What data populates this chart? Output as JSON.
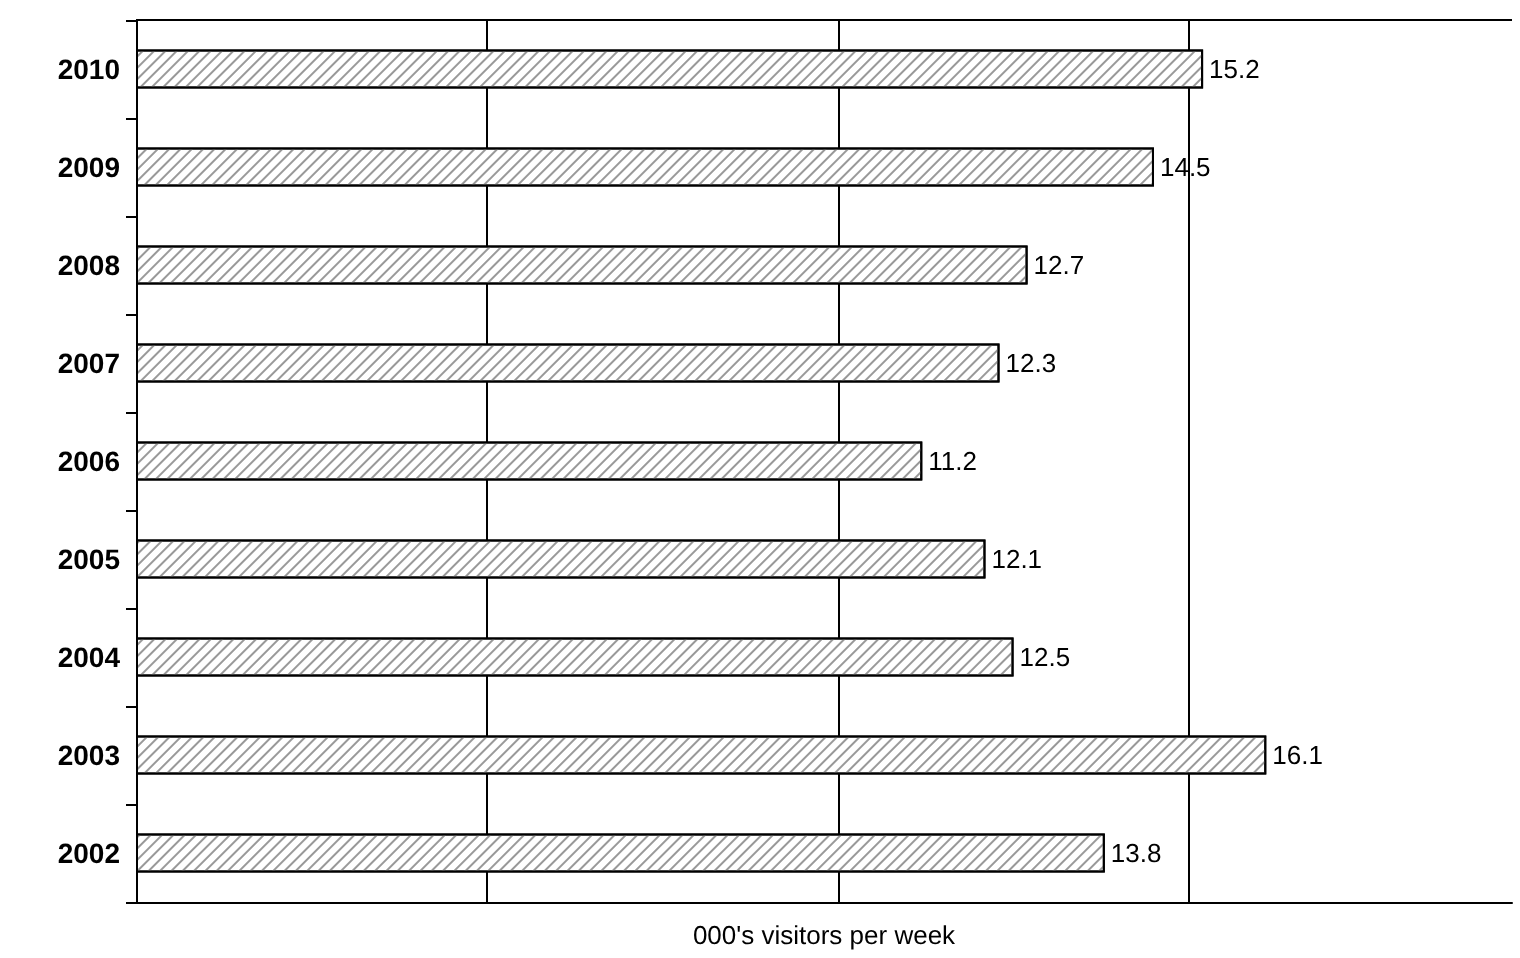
{
  "chart_data": {
    "type": "bar",
    "orientation": "horizontal",
    "xlabel": "000's visitors per week",
    "categories": [
      "2010",
      "2009",
      "2008",
      "2007",
      "2006",
      "2005",
      "2004",
      "2003",
      "2002"
    ],
    "values": [
      15.2,
      14.5,
      12.7,
      12.3,
      11.2,
      12.1,
      12.5,
      16.1,
      13.8
    ],
    "color": "#ffffff",
    "data_labels": true,
    "grid": "x",
    "tick_labels": "y",
    "xlim": [
      0,
      19.6
    ],
    "xticks": [
      {
        "value": 0,
        "label": null
      },
      {
        "value": 5,
        "label": null
      },
      {
        "value": 10,
        "label": null
      },
      {
        "value": 15,
        "label": null
      }
    ]
  }
}
